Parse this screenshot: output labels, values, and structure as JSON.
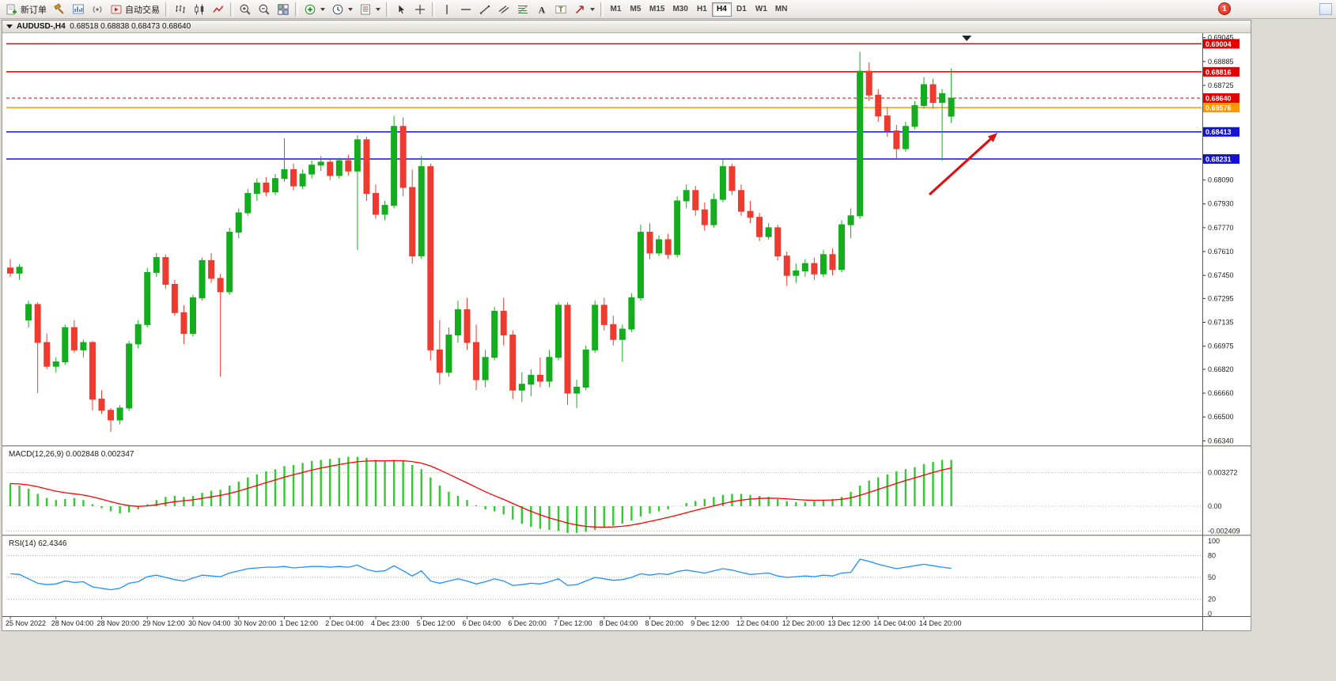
{
  "app": {
    "toolbar": {
      "groups": [
        {
          "name": "trade",
          "buttons": [
            {
              "id": "new-order",
              "icon": "new-order",
              "label": "新订单"
            },
            {
              "id": "chart-wizard",
              "icon": "wizard",
              "label": ""
            },
            {
              "id": "new-chart",
              "icon": "new-chart",
              "label": ""
            },
            {
              "id": "signals",
              "icon": "signals",
              "label": ""
            },
            {
              "id": "auto-trading",
              "icon": "autotrade",
              "label": "自动交易"
            }
          ]
        },
        {
          "name": "chart-type",
          "buttons": [
            {
              "id": "bars-chart",
              "icon": "bars",
              "label": ""
            },
            {
              "id": "candlestick-chart",
              "icon": "candles",
              "label": ""
            },
            {
              "id": "line-chart",
              "icon": "line",
              "label": ""
            }
          ]
        },
        {
          "name": "zoom",
          "buttons": [
            {
              "id": "zoom-in",
              "icon": "zoom-in",
              "label": ""
            },
            {
              "id": "zoom-out",
              "icon": "zoom-out",
              "label": ""
            },
            {
              "id": "tile-windows",
              "icon": "tile",
              "label": ""
            }
          ]
        },
        {
          "name": "objects",
          "buttons": [
            {
              "id": "indicators",
              "icon": "indicators",
              "label": "",
              "dropdown": true
            },
            {
              "id": "periods",
              "icon": "clock",
              "label": "",
              "dropdown": true
            },
            {
              "id": "templates",
              "icon": "template",
              "label": "",
              "dropdown": true
            }
          ]
        },
        {
          "name": "cursor",
          "buttons": [
            {
              "id": "cursor",
              "icon": "cursor",
              "label": ""
            },
            {
              "id": "crosshair",
              "icon": "crosshair",
              "label": ""
            }
          ]
        },
        {
          "name": "draw",
          "buttons": [
            {
              "id": "vertical-line",
              "icon": "vline",
              "label": ""
            },
            {
              "id": "horizontal-line",
              "icon": "hline",
              "label": ""
            },
            {
              "id": "trendline",
              "icon": "trend",
              "label": ""
            },
            {
              "id": "equidistant-channel",
              "icon": "channel",
              "label": ""
            },
            {
              "id": "fibonacci",
              "icon": "fibo",
              "label": ""
            },
            {
              "id": "text",
              "icon": "text-a",
              "label": ""
            },
            {
              "id": "text-label",
              "icon": "text-label",
              "label": ""
            },
            {
              "id": "arrows",
              "icon": "arrows",
              "label": "",
              "dropdown": true
            }
          ]
        }
      ],
      "timeframes": [
        "M1",
        "M5",
        "M15",
        "M30",
        "H1",
        "H4",
        "D1",
        "W1",
        "MN"
      ],
      "active_timeframe": "H4",
      "notification_badge": "1"
    }
  },
  "chart_window": {
    "title": "AUDUSD-,H4",
    "ohlc_text": "0.68518 0.68838 0.68473 0.68640"
  },
  "chart_data": {
    "type": "candlestick",
    "symbol": "AUDUSD-",
    "timeframe": "H4",
    "current_bar": {
      "open": "0.68518",
      "high": "0.68838",
      "low": "0.68473",
      "close": "0.68640"
    },
    "colors": {
      "up": "#13ad1d",
      "down": "#ee3b2f",
      "macd_histogram": "#2fcb2f",
      "macd_signal": "#ff0000",
      "rsi_line": "#1e90ff",
      "line_red": "#e00000",
      "line_orange": "#ff9800",
      "line_blue": "#1414cc",
      "arrow": "#e01010"
    },
    "price_axis": {
      "ticks": [
        "0.69045",
        "0.68885",
        "0.68725",
        "0.68565",
        "0.68405",
        "0.68245",
        "0.68090",
        "0.67930",
        "0.67770",
        "0.67610",
        "0.67450",
        "0.67295",
        "0.67135",
        "0.66975",
        "0.66820",
        "0.66660",
        "0.66500",
        "0.66340"
      ]
    },
    "horizontal_lines": [
      {
        "price": 0.69004,
        "label": "0.69004",
        "color": "#e00000",
        "style": "solid"
      },
      {
        "price": 0.68816,
        "label": "0.68816",
        "color": "#e00000",
        "style": "solid"
      },
      {
        "price": 0.6864,
        "label": "0.68640",
        "color": "#e00000",
        "style": "dashed"
      },
      {
        "price": 0.68576,
        "label": "0.68576",
        "color": "#ff9800",
        "style": "solid"
      },
      {
        "price": 0.68413,
        "label": "0.68413",
        "color": "#1414cc",
        "style": "solid"
      },
      {
        "price": 0.68231,
        "label": "0.68231",
        "color": "#1414cc",
        "style": "solid"
      }
    ],
    "time_axis": {
      "label_every_n_candles": 5,
      "labels": [
        "25 Nov 2022",
        "28 Nov 04:00",
        "28 Nov 20:00",
        "29 Nov 12:00",
        "30 Nov 04:00",
        "30 Nov 20:00",
        "1 Dec 12:00",
        "2 Dec 04:00",
        "4 Dec 23:00",
        "5 Dec 12:00",
        "6 Dec 04:00",
        "6 Dec 20:00",
        "7 Dec 12:00",
        "8 Dec 04:00",
        "8 Dec 20:00",
        "9 Dec 12:00",
        "12 Dec 04:00",
        "12 Dec 20:00",
        "13 Dec 12:00",
        "14 Dec 04:00",
        "14 Dec 20:00"
      ]
    },
    "candles": [
      [
        0.675,
        0.6756,
        0.6744,
        0.67465
      ],
      [
        0.67465,
        0.67525,
        0.6742,
        0.67505
      ],
      [
        0.6715,
        0.6728,
        0.671,
        0.67255
      ],
      [
        0.67255,
        0.6727,
        0.6666,
        0.67
      ],
      [
        0.67,
        0.6706,
        0.6682,
        0.6684
      ],
      [
        0.6684,
        0.669,
        0.668,
        0.6687
      ],
      [
        0.6687,
        0.6712,
        0.6685,
        0.671
      ],
      [
        0.671,
        0.6715,
        0.6693,
        0.6695
      ],
      [
        0.6695,
        0.6702,
        0.669,
        0.67
      ],
      [
        0.67,
        0.6701,
        0.66545,
        0.6662
      ],
      [
        0.6662,
        0.6668,
        0.6652,
        0.66545
      ],
      [
        0.66545,
        0.6656,
        0.664,
        0.6648
      ],
      [
        0.6648,
        0.6658,
        0.6645,
        0.6656
      ],
      [
        0.6656,
        0.6701,
        0.6654,
        0.6699
      ],
      [
        0.6699,
        0.6715,
        0.6696,
        0.6712
      ],
      [
        0.6712,
        0.675,
        0.671,
        0.6747
      ],
      [
        0.6747,
        0.676,
        0.6744,
        0.6757
      ],
      [
        0.6757,
        0.6759,
        0.6736,
        0.6739
      ],
      [
        0.6739,
        0.6742,
        0.6718,
        0.672
      ],
      [
        0.672,
        0.6725,
        0.6699,
        0.6706
      ],
      [
        0.6706,
        0.6732,
        0.6704,
        0.673
      ],
      [
        0.673,
        0.6757,
        0.6728,
        0.6755
      ],
      [
        0.6755,
        0.676,
        0.674,
        0.6743
      ],
      [
        0.6743,
        0.6746,
        0.6677,
        0.6734
      ],
      [
        0.6734,
        0.6777,
        0.6732,
        0.6774
      ],
      [
        0.6774,
        0.679,
        0.677,
        0.6787
      ],
      [
        0.6787,
        0.6803,
        0.6785,
        0.68
      ],
      [
        0.68,
        0.681,
        0.6795,
        0.6807
      ],
      [
        0.6807,
        0.6811,
        0.6798,
        0.6801
      ],
      [
        0.6801,
        0.6813,
        0.6799,
        0.681
      ],
      [
        0.681,
        0.6837,
        0.6808,
        0.6816
      ],
      [
        0.6816,
        0.682,
        0.6802,
        0.6805
      ],
      [
        0.6805,
        0.6816,
        0.6803,
        0.6813
      ],
      [
        0.6813,
        0.6822,
        0.681,
        0.6819
      ],
      [
        0.6819,
        0.6825,
        0.6815,
        0.6821
      ],
      [
        0.6821,
        0.6823,
        0.6809,
        0.6812
      ],
      [
        0.6812,
        0.6824,
        0.681,
        0.6822
      ],
      [
        0.6822,
        0.6826,
        0.6812,
        0.6815
      ],
      [
        0.6815,
        0.6839,
        0.6762,
        0.6836
      ],
      [
        0.6836,
        0.6838,
        0.6795,
        0.68
      ],
      [
        0.68,
        0.6806,
        0.6783,
        0.6786
      ],
      [
        0.6786,
        0.6795,
        0.6782,
        0.6792
      ],
      [
        0.6792,
        0.6852,
        0.679,
        0.6845
      ],
      [
        0.6845,
        0.6851,
        0.6798,
        0.6804
      ],
      [
        0.6804,
        0.6816,
        0.6753,
        0.6758
      ],
      [
        0.6758,
        0.6825,
        0.6756,
        0.6818
      ],
      [
        0.6818,
        0.682,
        0.6688,
        0.6695
      ],
      [
        0.6695,
        0.6715,
        0.6672,
        0.668
      ],
      [
        0.668,
        0.671,
        0.6677,
        0.6705
      ],
      [
        0.6705,
        0.6728,
        0.67,
        0.6722
      ],
      [
        0.6722,
        0.673,
        0.6695,
        0.67
      ],
      [
        0.67,
        0.6712,
        0.6668,
        0.6675
      ],
      [
        0.6675,
        0.6695,
        0.667,
        0.669
      ],
      [
        0.669,
        0.6724,
        0.6688,
        0.6721
      ],
      [
        0.6721,
        0.673,
        0.6698,
        0.6705
      ],
      [
        0.6705,
        0.6708,
        0.6662,
        0.6668
      ],
      [
        0.6668,
        0.668,
        0.666,
        0.6672
      ],
      [
        0.6672,
        0.6682,
        0.6664,
        0.6678
      ],
      [
        0.6678,
        0.669,
        0.667,
        0.6674
      ],
      [
        0.6674,
        0.6695,
        0.667,
        0.669
      ],
      [
        0.669,
        0.6727,
        0.6688,
        0.6725
      ],
      [
        0.6725,
        0.6727,
        0.6658,
        0.6666
      ],
      [
        0.6666,
        0.6675,
        0.6656,
        0.667
      ],
      [
        0.667,
        0.6698,
        0.6668,
        0.6695
      ],
      [
        0.6695,
        0.6728,
        0.6693,
        0.6725
      ],
      [
        0.6725,
        0.673,
        0.6708,
        0.6712
      ],
      [
        0.6712,
        0.6718,
        0.6698,
        0.6702
      ],
      [
        0.6702,
        0.6712,
        0.6687,
        0.6709
      ],
      [
        0.6709,
        0.6733,
        0.6707,
        0.673
      ],
      [
        0.673,
        0.6779,
        0.6728,
        0.6774
      ],
      [
        0.6774,
        0.678,
        0.6756,
        0.676
      ],
      [
        0.676,
        0.6772,
        0.6758,
        0.6769
      ],
      [
        0.6769,
        0.6773,
        0.6756,
        0.6759
      ],
      [
        0.6759,
        0.6798,
        0.6757,
        0.6795
      ],
      [
        0.6795,
        0.6806,
        0.679,
        0.6802
      ],
      [
        0.6802,
        0.6805,
        0.6785,
        0.6789
      ],
      [
        0.6789,
        0.6794,
        0.6775,
        0.6779
      ],
      [
        0.6779,
        0.68,
        0.6777,
        0.6796
      ],
      [
        0.6796,
        0.6823,
        0.6794,
        0.6818
      ],
      [
        0.6818,
        0.682,
        0.6799,
        0.6802
      ],
      [
        0.6802,
        0.6806,
        0.6785,
        0.6788
      ],
      [
        0.6788,
        0.6795,
        0.678,
        0.6784
      ],
      [
        0.6784,
        0.6787,
        0.6768,
        0.6771
      ],
      [
        0.6771,
        0.678,
        0.6769,
        0.6777
      ],
      [
        0.6777,
        0.6779,
        0.6755,
        0.6758
      ],
      [
        0.6758,
        0.6761,
        0.6738,
        0.6745
      ],
      [
        0.6745,
        0.6753,
        0.674,
        0.6748
      ],
      [
        0.6748,
        0.6756,
        0.6744,
        0.6753
      ],
      [
        0.6753,
        0.6757,
        0.6742,
        0.6746
      ],
      [
        0.6746,
        0.6762,
        0.6744,
        0.6759
      ],
      [
        0.6759,
        0.6763,
        0.6745,
        0.6749
      ],
      [
        0.6749,
        0.6782,
        0.6747,
        0.6779
      ],
      [
        0.6779,
        0.679,
        0.677,
        0.6785
      ],
      [
        0.6785,
        0.6895,
        0.6783,
        0.6882
      ],
      [
        0.6882,
        0.6888,
        0.6862,
        0.6866
      ],
      [
        0.6866,
        0.687,
        0.6848,
        0.6852
      ],
      [
        0.6852,
        0.6858,
        0.6838,
        0.6842
      ],
      [
        0.6842,
        0.6846,
        0.6823,
        0.683
      ],
      [
        0.683,
        0.6848,
        0.6828,
        0.6845
      ],
      [
        0.6845,
        0.6862,
        0.6843,
        0.6859
      ],
      [
        0.6859,
        0.6878,
        0.6857,
        0.6873
      ],
      [
        0.6873,
        0.6877,
        0.6857,
        0.6861
      ],
      [
        0.6861,
        0.687,
        0.6822,
        0.6867
      ],
      [
        0.68518,
        0.68838,
        0.68473,
        0.6864
      ]
    ],
    "indicators": {
      "macd": {
        "label": "MACD(12,26,9)",
        "value_main": "0.002848",
        "value_signal": "0.002347",
        "scale_labels": [
          "0.003272",
          "0.00",
          "-0.002409"
        ],
        "scale_values": [
          0.003272,
          0,
          -0.002409
        ],
        "unit": 0.0001,
        "signal_period": 9,
        "histogram": [
          22,
          20,
          17,
          12,
          8,
          6,
          7,
          8,
          6,
          2,
          -2,
          -5,
          -7,
          -6,
          -3,
          2,
          6,
          9,
          10,
          9,
          10,
          13,
          15,
          16,
          20,
          24,
          28,
          31,
          34,
          36,
          39,
          40,
          42,
          44,
          45,
          46,
          47,
          48,
          48,
          47,
          45,
          44,
          45,
          44,
          40,
          36,
          28,
          20,
          14,
          10,
          6,
          1,
          -3,
          -5,
          -8,
          -13,
          -17,
          -20,
          -22,
          -23,
          -24,
          -26,
          -26,
          -25,
          -23,
          -21,
          -19,
          -17,
          -14,
          -10,
          -7,
          -5,
          -3,
          0,
          3,
          5,
          7,
          9,
          11,
          12,
          12,
          11,
          10,
          9,
          7,
          5,
          4,
          4,
          5,
          6,
          7,
          9,
          14,
          20,
          25,
          28,
          31,
          34,
          36,
          38,
          41,
          43,
          45,
          45
        ]
      },
      "rsi": {
        "label": "RSI(14)",
        "value": "62.4346",
        "scale_labels": [
          "100",
          "80",
          "50",
          "20",
          "0"
        ],
        "scale_values": [
          100,
          80,
          50,
          20,
          0
        ],
        "levels": [
          80,
          50,
          20
        ],
        "values": [
          55,
          54,
          48,
          42,
          40,
          41,
          45,
          43,
          44,
          37,
          35,
          33,
          35,
          42,
          44,
          51,
          53,
          50,
          47,
          45,
          49,
          53,
          52,
          51,
          56,
          59,
          62,
          63,
          64,
          64,
          65,
          63,
          64,
          65,
          65,
          64,
          65,
          64,
          67,
          61,
          58,
          59,
          66,
          59,
          52,
          59,
          45,
          42,
          45,
          48,
          45,
          41,
          44,
          48,
          45,
          39,
          40,
          42,
          41,
          44,
          48,
          39,
          40,
          45,
          50,
          48,
          46,
          47,
          50,
          55,
          53,
          55,
          54,
          58,
          60,
          58,
          56,
          59,
          62,
          60,
          57,
          54,
          55,
          56,
          52,
          50,
          51,
          52,
          51,
          53,
          52,
          56,
          57,
          75,
          72,
          68,
          65,
          62,
          64,
          66,
          68,
          66,
          64,
          62.4
        ]
      }
    },
    "annotations": [
      {
        "type": "arrow",
        "color": "#e01010",
        "from": [
          1172,
          246
        ],
        "to": [
          1258,
          168
        ]
      }
    ]
  }
}
